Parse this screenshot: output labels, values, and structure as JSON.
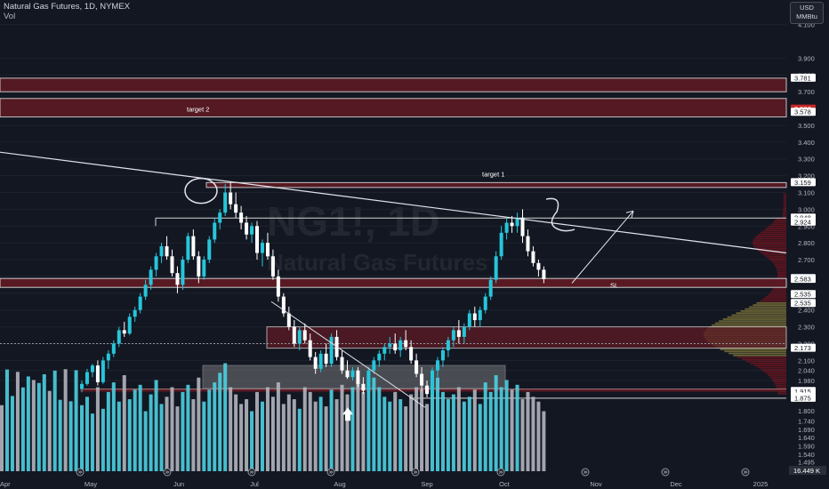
{
  "header": {
    "title": "Natural Gas Futures, 1D, NYMEX",
    "volume_label": "Vol"
  },
  "unit_box": {
    "line1": "USD",
    "line2": "MMBtu"
  },
  "watermark": {
    "symbol": "NG1!, 1D",
    "name": "Natural Gas Futures"
  },
  "colors": {
    "background": "#131722",
    "up": "#26c6da",
    "down": "#ffffff",
    "volume_up": "#4dd0e1",
    "volume_down": "#b2b5be",
    "zone_fill": "#5d1a24",
    "zone_border": "#d6d6d6",
    "grey_box": "#8a8a8a",
    "trendline": "#e0e3eb",
    "price_tag_red": "#c62828",
    "price_tag_teal": "#26c6da"
  },
  "chart_data": {
    "type": "candlestick",
    "symbol": "NG1!",
    "timeframe": "1D",
    "exchange": "NYMEX",
    "ylim": [
      1.44,
      4.13
    ],
    "y_ticks": [
      "4.100",
      "3.900",
      "3.800",
      "3.700",
      "3.600",
      "3.500",
      "3.400",
      "3.300",
      "3.200",
      "3.100",
      "3.000",
      "2.900",
      "2.800",
      "2.700",
      "2.600",
      "2.500",
      "2.400",
      "2.300",
      "2.200",
      "2.100",
      "2.040",
      "1.980",
      "1.800",
      "1.740",
      "1.690",
      "1.640",
      "1.590",
      "1.540",
      "1.495"
    ],
    "x_ticks": [
      "Apr",
      "May",
      "Jun",
      "Jul",
      "Aug",
      "Sep",
      "Oct",
      "Nov",
      "Dec",
      "2025"
    ],
    "price_labels": [
      {
        "value": 3.781,
        "text": "3.781",
        "style": "white"
      },
      {
        "value": 3.597,
        "text": "3.597",
        "style": "red"
      },
      {
        "value": 3.578,
        "text": "3.578",
        "style": "white"
      },
      {
        "value": 3.159,
        "text": "3.159",
        "style": "white"
      },
      {
        "value": 2.948,
        "text": "2.948",
        "style": "white"
      },
      {
        "value": 2.924,
        "text": "2.924",
        "style": "white"
      },
      {
        "value": 2.588,
        "text": "2.588",
        "style": "white"
      },
      {
        "value": 2.584,
        "text": "2.584",
        "style": "teal"
      },
      {
        "value": 2.583,
        "text": "2.583",
        "style": "white"
      },
      {
        "value": 2.535,
        "text": "2.535",
        "style": "white",
        "nudge": 8
      },
      {
        "value": 2.535,
        "text": "2.535",
        "style": "white",
        "nudge": 18
      },
      {
        "value": 2.173,
        "text": "2.173",
        "style": "white"
      },
      {
        "value": 1.915,
        "text": "1.915",
        "style": "white"
      },
      {
        "value": 1.913,
        "text": "1.913",
        "style": "white",
        "nudge": 6
      },
      {
        "value": 1.875,
        "text": "1.875",
        "style": "white"
      }
    ],
    "volume_label": "16.449 K",
    "annotations": [
      {
        "text": "target 2",
        "price": 3.597
      },
      {
        "text": "target 1",
        "price": 3.21
      },
      {
        "text": "SL",
        "price": 2.55
      }
    ],
    "zones": [
      {
        "from": 3.7,
        "to": 3.781
      },
      {
        "from": 3.55,
        "to": 3.66
      },
      {
        "from": 3.13,
        "to": 3.159
      },
      {
        "from": 2.924,
        "to": 2.948
      },
      {
        "from": 2.535,
        "to": 2.588
      },
      {
        "from": 2.173,
        "to": 2.3
      },
      {
        "from": 1.913,
        "to": 1.93
      },
      {
        "from": 1.875,
        "to": 1.89
      }
    ],
    "ohlc": [
      [
        1.93,
        1.98,
        1.91,
        1.96
      ],
      [
        1.96,
        2.05,
        1.95,
        2.03
      ],
      [
        2.03,
        2.08,
        2.0,
        2.07
      ],
      [
        2.07,
        2.1,
        1.95,
        1.97
      ],
      [
        1.97,
        2.12,
        1.96,
        2.1
      ],
      [
        2.1,
        2.16,
        2.05,
        2.14
      ],
      [
        2.14,
        2.22,
        2.12,
        2.2
      ],
      [
        2.2,
        2.3,
        2.18,
        2.28
      ],
      [
        2.28,
        2.33,
        2.24,
        2.26
      ],
      [
        2.26,
        2.38,
        2.25,
        2.36
      ],
      [
        2.36,
        2.42,
        2.33,
        2.4
      ],
      [
        2.4,
        2.5,
        2.38,
        2.48
      ],
      [
        2.48,
        2.58,
        2.46,
        2.55
      ],
      [
        2.55,
        2.66,
        2.52,
        2.64
      ],
      [
        2.64,
        2.74,
        2.6,
        2.72
      ],
      [
        2.72,
        2.8,
        2.68,
        2.78
      ],
      [
        2.78,
        2.84,
        2.7,
        2.72
      ],
      [
        2.72,
        2.76,
        2.6,
        2.62
      ],
      [
        2.62,
        2.66,
        2.5,
        2.55
      ],
      [
        2.55,
        2.72,
        2.52,
        2.7
      ],
      [
        2.7,
        2.86,
        2.68,
        2.84
      ],
      [
        2.84,
        2.88,
        2.7,
        2.72
      ],
      [
        2.72,
        2.75,
        2.56,
        2.6
      ],
      [
        2.6,
        2.72,
        2.58,
        2.7
      ],
      [
        2.7,
        2.84,
        2.68,
        2.82
      ],
      [
        2.82,
        2.95,
        2.8,
        2.92
      ],
      [
        2.92,
        3.0,
        2.88,
        2.98
      ],
      [
        2.98,
        3.15,
        2.96,
        3.1
      ],
      [
        3.1,
        3.159,
        3.0,
        3.03
      ],
      [
        3.03,
        3.1,
        2.95,
        2.98
      ],
      [
        2.98,
        3.02,
        2.88,
        2.92
      ],
      [
        2.92,
        2.96,
        2.82,
        2.85
      ],
      [
        2.85,
        2.92,
        2.8,
        2.9
      ],
      [
        2.9,
        2.93,
        2.7,
        2.74
      ],
      [
        2.74,
        2.82,
        2.66,
        2.8
      ],
      [
        2.8,
        2.86,
        2.7,
        2.72
      ],
      [
        2.72,
        2.76,
        2.58,
        2.6
      ],
      [
        2.6,
        2.64,
        2.45,
        2.48
      ],
      [
        2.48,
        2.5,
        2.36,
        2.38
      ],
      [
        2.38,
        2.42,
        2.28,
        2.3
      ],
      [
        2.3,
        2.34,
        2.18,
        2.2
      ],
      [
        2.2,
        2.3,
        2.16,
        2.28
      ],
      [
        2.28,
        2.32,
        2.2,
        2.22
      ],
      [
        2.22,
        2.26,
        2.1,
        2.12
      ],
      [
        2.12,
        2.15,
        2.02,
        2.05
      ],
      [
        2.05,
        2.16,
        2.03,
        2.14
      ],
      [
        2.14,
        2.2,
        2.06,
        2.08
      ],
      [
        2.08,
        2.26,
        2.06,
        2.24
      ],
      [
        2.24,
        2.28,
        2.1,
        2.12
      ],
      [
        2.12,
        2.16,
        2.02,
        2.04
      ],
      [
        2.04,
        2.1,
        1.99,
        2.0
      ],
      [
        2.0,
        2.06,
        1.98,
        2.04
      ],
      [
        2.04,
        2.06,
        1.94,
        1.96
      ],
      [
        1.96,
        2.0,
        1.9,
        1.92
      ],
      [
        1.92,
        2.06,
        1.9,
        2.04
      ],
      [
        2.04,
        2.12,
        2.02,
        2.1
      ],
      [
        2.1,
        2.16,
        2.06,
        2.14
      ],
      [
        2.14,
        2.2,
        2.1,
        2.18
      ],
      [
        2.18,
        2.24,
        2.14,
        2.2
      ],
      [
        2.2,
        2.26,
        2.14,
        2.16
      ],
      [
        2.16,
        2.24,
        2.12,
        2.22
      ],
      [
        2.22,
        2.28,
        2.16,
        2.18
      ],
      [
        2.18,
        2.22,
        2.08,
        2.1
      ],
      [
        2.1,
        2.14,
        2.0,
        2.02
      ],
      [
        2.02,
        2.06,
        1.92,
        1.95
      ],
      [
        1.95,
        1.98,
        1.88,
        1.9
      ],
      [
        1.9,
        2.06,
        1.89,
        2.04
      ],
      [
        2.04,
        2.12,
        2.0,
        2.1
      ],
      [
        2.1,
        2.18,
        2.06,
        2.16
      ],
      [
        2.16,
        2.24,
        2.12,
        2.22
      ],
      [
        2.22,
        2.3,
        2.18,
        2.28
      ],
      [
        2.28,
        2.34,
        2.2,
        2.24
      ],
      [
        2.24,
        2.32,
        2.2,
        2.3
      ],
      [
        2.3,
        2.4,
        2.28,
        2.38
      ],
      [
        2.38,
        2.42,
        2.3,
        2.34
      ],
      [
        2.34,
        2.42,
        2.3,
        2.4
      ],
      [
        2.4,
        2.5,
        2.38,
        2.48
      ],
      [
        2.48,
        2.6,
        2.46,
        2.58
      ],
      [
        2.58,
        2.75,
        2.56,
        2.72
      ],
      [
        2.72,
        2.9,
        2.7,
        2.86
      ],
      [
        2.86,
        2.95,
        2.82,
        2.92
      ],
      [
        2.92,
        2.96,
        2.86,
        2.9
      ],
      [
        2.9,
        2.98,
        2.86,
        2.95
      ],
      [
        2.95,
        3.0,
        2.8,
        2.84
      ],
      [
        2.84,
        2.88,
        2.72,
        2.75
      ],
      [
        2.75,
        2.78,
        2.66,
        2.68
      ],
      [
        2.68,
        2.7,
        2.6,
        2.64
      ],
      [
        2.64,
        2.66,
        2.56,
        2.584
      ]
    ],
    "volume_ratio": [
      0.55,
      0.62,
      0.48,
      0.7,
      0.52,
      0.66,
      0.74,
      0.58,
      0.8,
      0.6,
      0.68,
      0.72,
      0.5,
      0.64,
      0.76,
      0.56,
      0.62,
      0.7,
      0.54,
      0.66,
      0.72,
      0.6,
      0.78,
      0.58,
      0.68,
      0.74,
      0.82,
      0.9,
      0.7,
      0.64,
      0.56,
      0.6,
      0.5,
      0.66,
      0.58,
      0.7,
      0.62,
      0.74,
      0.56,
      0.64,
      0.6,
      0.52,
      0.7,
      0.66,
      0.58,
      0.62,
      0.54,
      0.68,
      0.6,
      0.72,
      0.64,
      0.7,
      0.76,
      0.66,
      0.82,
      0.78,
      0.7,
      0.62,
      0.58,
      0.66,
      0.6,
      0.54,
      0.64,
      0.7,
      0.68,
      0.56,
      0.72,
      0.78,
      0.66,
      0.6,
      0.64,
      0.7,
      0.58,
      0.62,
      0.68,
      0.56,
      0.74,
      0.66,
      0.8,
      0.7,
      0.76,
      0.68,
      0.72,
      0.6,
      0.66,
      0.62,
      0.58,
      0.5
    ]
  }
}
